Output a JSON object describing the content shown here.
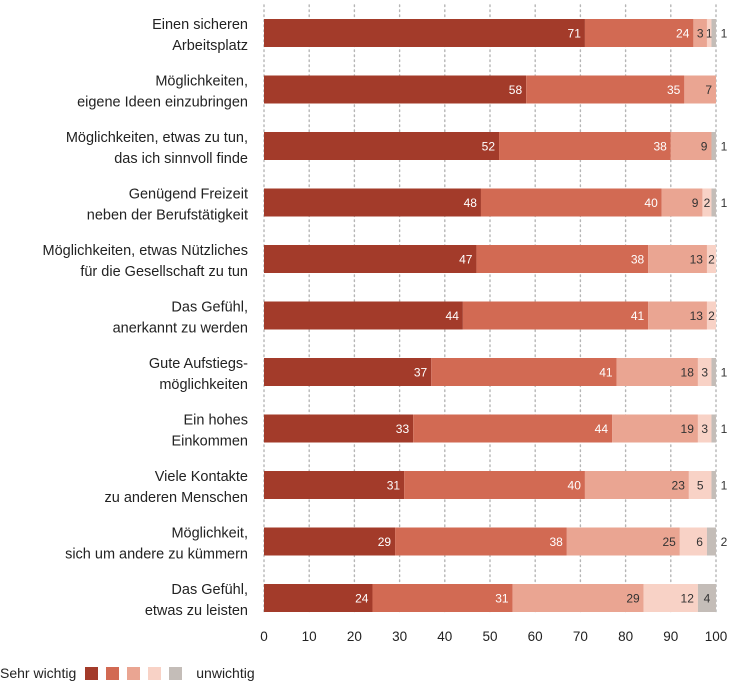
{
  "chart_data": {
    "type": "bar",
    "orientation": "horizontal",
    "stacked": true,
    "categories": [
      [
        "Einen sicheren",
        "Arbeitsplatz"
      ],
      [
        "Möglichkeiten,",
        "eigene Ideen einzubringen"
      ],
      [
        "Möglichkeiten, etwas zu tun,",
        "das ich sinnvoll finde"
      ],
      [
        "Genügend Freizeit",
        "neben der Berufstätigkeit"
      ],
      [
        "Möglichkeiten, etwas Nützliches",
        "für die Gesellschaft zu tun"
      ],
      [
        "Das Gefühl,",
        "anerkannt zu werden"
      ],
      [
        "Gute Aufstiegs-",
        "möglichkeiten"
      ],
      [
        "Ein hohes",
        "Einkommen"
      ],
      [
        "Viele Kontakte",
        "zu anderen Menschen"
      ],
      [
        "Möglichkeit,",
        "sich um andere zu kümmern"
      ],
      [
        "Das Gefühl,",
        "etwas zu leisten"
      ]
    ],
    "series": [
      {
        "color": "#a33b2a",
        "label_color": "#ffffff",
        "values": [
          71,
          58,
          52,
          48,
          47,
          44,
          37,
          33,
          31,
          29,
          24
        ]
      },
      {
        "color": "#d26a53",
        "label_color": "#ffffff",
        "values": [
          24,
          35,
          38,
          40,
          38,
          41,
          41,
          44,
          40,
          38,
          31
        ]
      },
      {
        "color": "#eaa592",
        "label_color": "#333333",
        "values": [
          3,
          7,
          9,
          9,
          13,
          13,
          18,
          19,
          23,
          25,
          29
        ]
      },
      {
        "color": "#f8d2c6",
        "label_color": "#333333",
        "values": [
          1,
          0,
          0,
          2,
          2,
          2,
          3,
          3,
          5,
          6,
          12
        ]
      },
      {
        "color": "#c4bdb8",
        "label_color": "#333333",
        "values": [
          1,
          0,
          1,
          1,
          0,
          0,
          1,
          1,
          1,
          2,
          4
        ]
      }
    ],
    "labels": [
      [
        "71",
        "24",
        "3",
        "1",
        "1"
      ],
      [
        "58",
        "35",
        "7",
        "",
        ""
      ],
      [
        "52",
        "38",
        "9",
        "",
        "1"
      ],
      [
        "48",
        "40",
        "9",
        "2",
        "1"
      ],
      [
        "47",
        "38",
        "13",
        "2",
        ""
      ],
      [
        "44",
        "41",
        "13",
        "2",
        ""
      ],
      [
        "37",
        "41",
        "18",
        "3",
        "1"
      ],
      [
        "33",
        "44",
        "19",
        "3",
        "1"
      ],
      [
        "31",
        "40",
        "23",
        "5",
        "1"
      ],
      [
        "29",
        "38",
        "25",
        "6",
        "2"
      ],
      [
        "24",
        "31",
        "29",
        "12",
        "4"
      ]
    ],
    "xlim": [
      0,
      100
    ],
    "xticks": [
      0,
      10,
      20,
      30,
      40,
      50,
      60,
      70,
      80,
      90,
      100
    ],
    "grid": "vertical dotted",
    "legend_placement": "bottom-left"
  },
  "legend": {
    "left_label": "Sehr wichtig",
    "right_label": "unwichtig"
  }
}
